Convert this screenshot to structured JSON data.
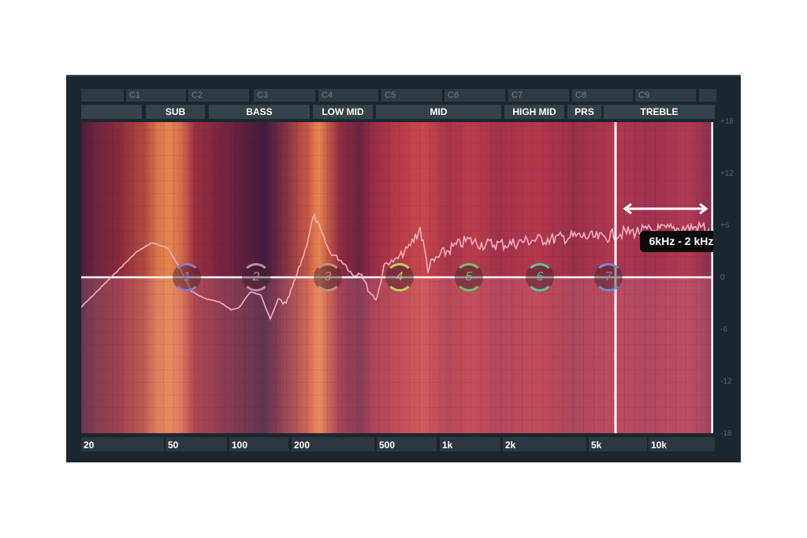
{
  "note_labels": [
    "",
    "C1",
    "C2",
    "C3",
    "C4",
    "C5",
    "C6",
    "C7",
    "C8",
    "C9",
    ""
  ],
  "bands": [
    "",
    "SUB",
    "BASS",
    "LOW MID",
    "MID",
    "HIGH MID",
    "PRS",
    "TREBLE"
  ],
  "freq_labels": [
    "20",
    "50",
    "100",
    "200",
    "500",
    "1k",
    "2k",
    "5k",
    "10k"
  ],
  "db_scale": [
    "+18",
    "+12",
    "+6",
    "0",
    "-6",
    "-12",
    "-18"
  ],
  "nodes": [
    {
      "label": "1",
      "color": "#8a7ac8"
    },
    {
      "label": "2",
      "color": "#c08aa8"
    },
    {
      "label": "3",
      "color": "#c09080"
    },
    {
      "label": "4",
      "color": "#b8d060"
    },
    {
      "label": "5",
      "color": "#70c070"
    },
    {
      "label": "6",
      "color": "#60c0a0"
    },
    {
      "label": "7",
      "color": "#7090c8"
    }
  ],
  "range_annotation": "6kHz - 2 kHz"
}
